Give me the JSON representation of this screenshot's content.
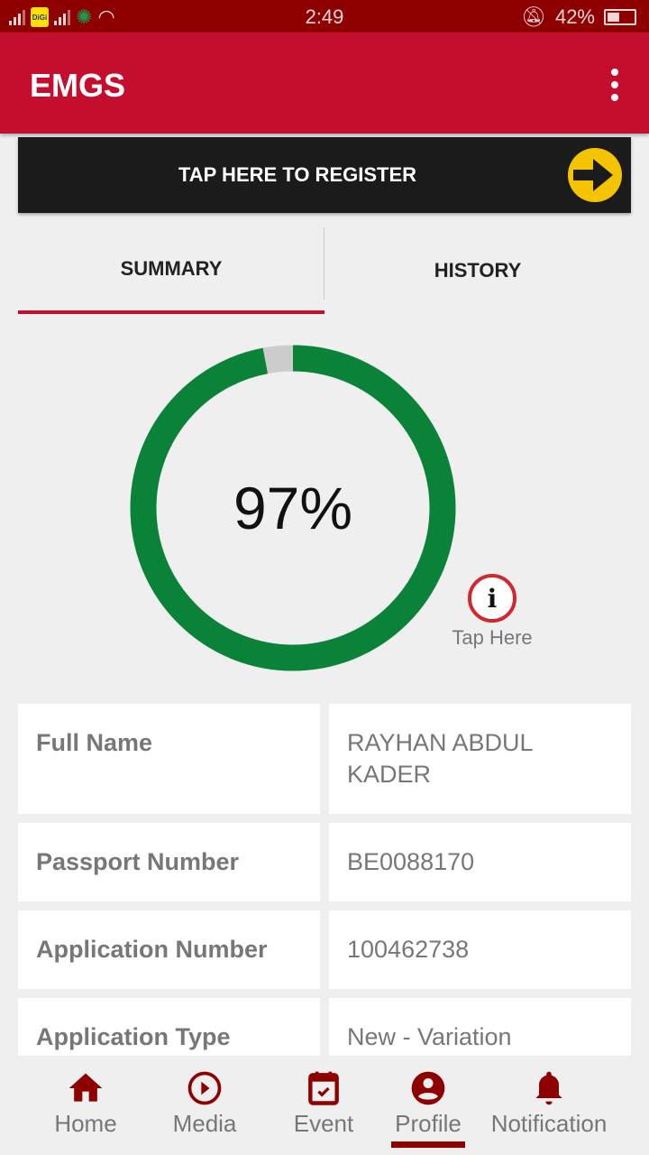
{
  "status_bar": {
    "time": "2:49",
    "battery": "42%",
    "carrier": "DiGi",
    "battery_level": 0.42
  },
  "app_bar": {
    "title": "EMGS"
  },
  "register": {
    "label": "TAP HERE TO REGISTER"
  },
  "tabs": [
    {
      "label": "SUMMARY",
      "active": true
    },
    {
      "label": "HISTORY",
      "active": false
    }
  ],
  "progress": {
    "value": 97,
    "label": "97%",
    "color": "#0a8238",
    "remainder_color": "#cccccc"
  },
  "info": {
    "label": "Tap Here"
  },
  "details": [
    {
      "key": "Full Name",
      "value": "RAYHAN ABDUL KADER"
    },
    {
      "key": "Passport Number",
      "value": "BE0088170"
    },
    {
      "key": "Application Number",
      "value": "100462738"
    },
    {
      "key": "Application Type",
      "value": "New - Variation"
    }
  ],
  "nav": [
    {
      "label": "Home",
      "icon": "home-icon"
    },
    {
      "label": "Media",
      "icon": "play-circle-icon"
    },
    {
      "label": "Event",
      "icon": "calendar-check-icon"
    },
    {
      "label": "Profile",
      "icon": "account-circle-icon",
      "active": true
    },
    {
      "label": "Notification",
      "icon": "bell-icon"
    }
  ],
  "colors": {
    "status": "#8e0000",
    "appbar": "#c50e2e",
    "accent": "#8e0000"
  }
}
